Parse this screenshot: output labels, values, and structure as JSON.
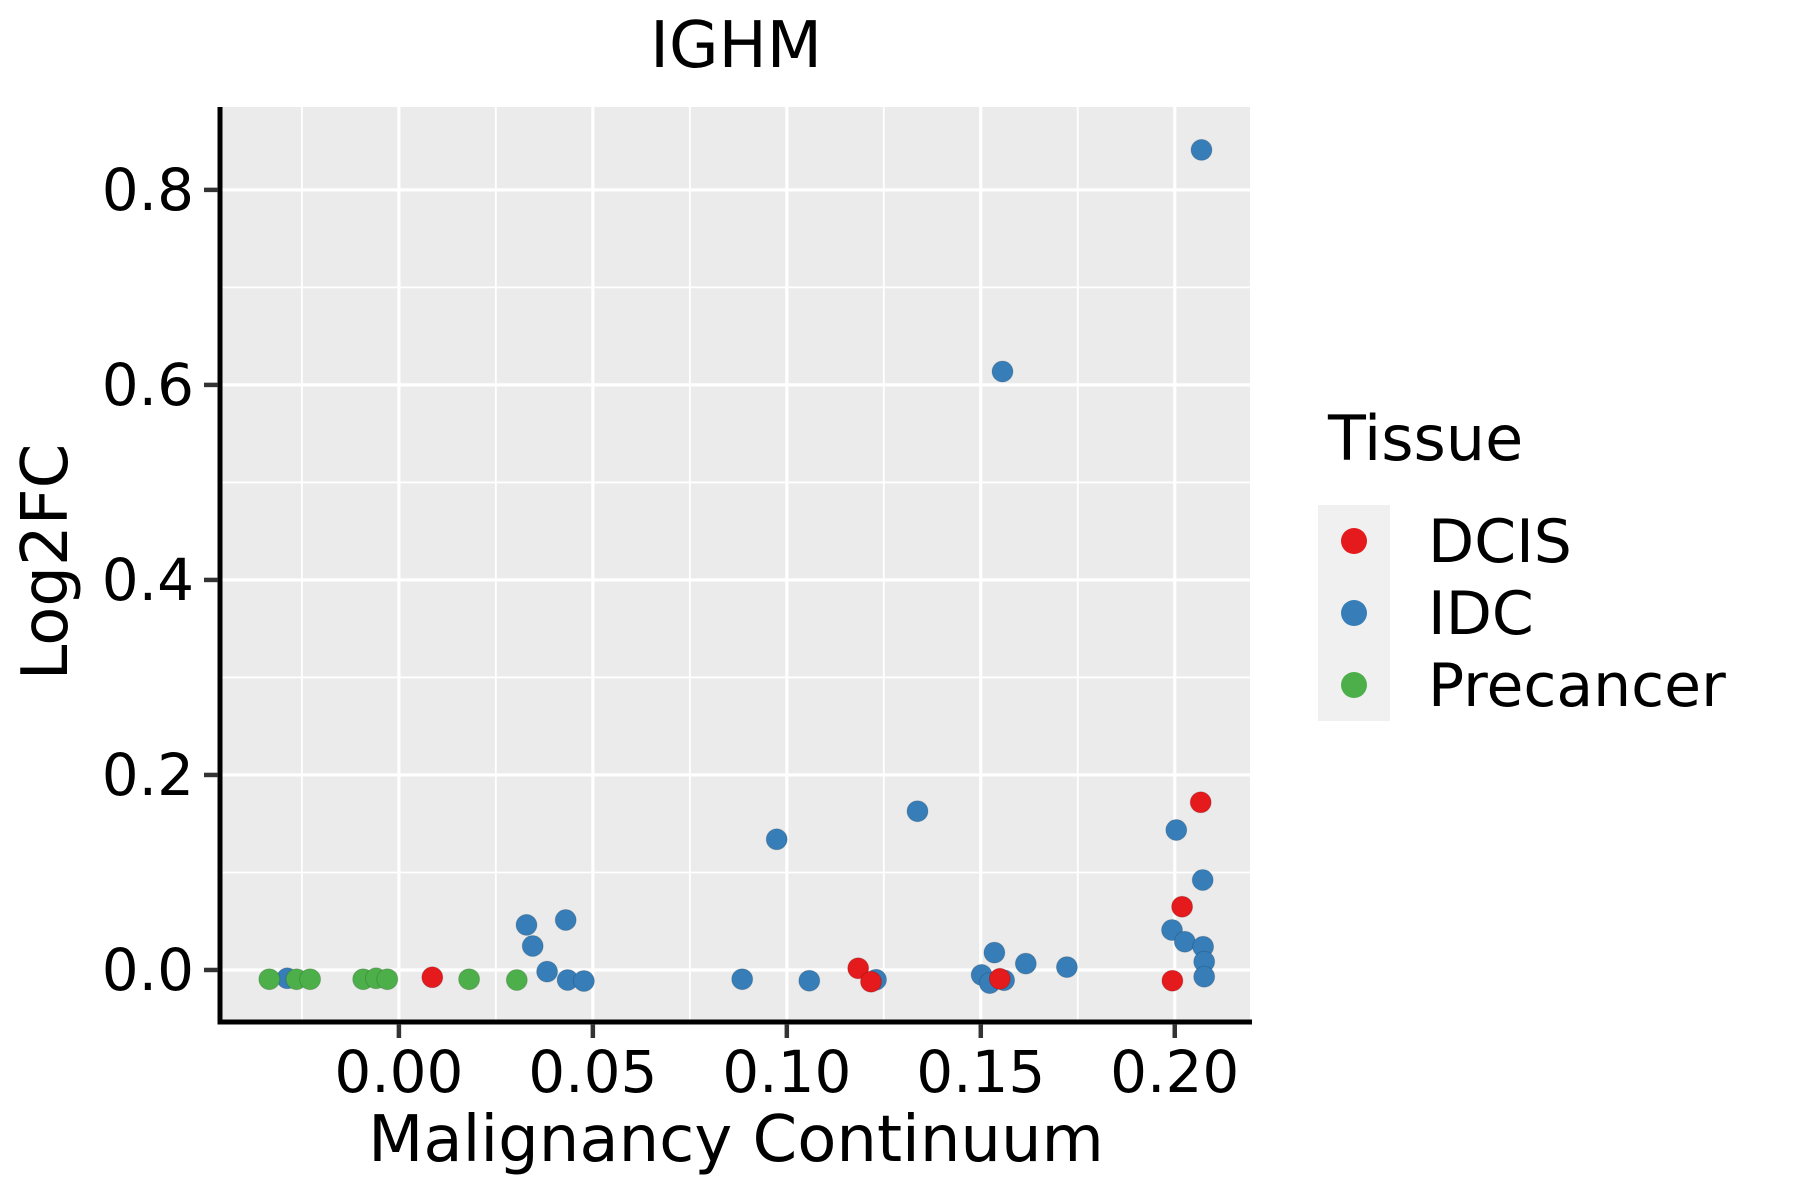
{
  "title": "IGHM",
  "axes": {
    "x": {
      "label": "Malignancy Continuum",
      "ticks": [
        0.0,
        0.05,
        0.1,
        0.15,
        0.2
      ],
      "tick_labels": [
        "0.00",
        "0.05",
        "0.10",
        "0.15",
        "0.20"
      ],
      "minor_ticks": [
        -0.025,
        0.025,
        0.075,
        0.125,
        0.175
      ],
      "range": [
        -0.0456,
        0.2194
      ]
    },
    "y": {
      "label": "Log2FC",
      "ticks": [
        0.0,
        0.2,
        0.4,
        0.6,
        0.8
      ],
      "tick_labels": [
        "0.0",
        "0.2",
        "0.4",
        "0.6",
        "0.8"
      ],
      "minor_ticks": [
        0.1,
        0.3,
        0.5,
        0.7
      ],
      "range": [
        -0.0513,
        0.885
      ]
    }
  },
  "legend": {
    "title": "Tissue",
    "items": [
      {
        "label": "DCIS",
        "color": "#E41A1C"
      },
      {
        "label": "IDC",
        "color": "#377EB8"
      },
      {
        "label": "Precancer",
        "color": "#4DAF4A"
      }
    ]
  },
  "style": {
    "panel_bg": "#EBEBEB",
    "grid_color": "#FFFFFF",
    "legend_key_bg": "#F0F0F0",
    "spine_color": "#000000",
    "tick_color": "#333333",
    "point_radius": 10.5
  },
  "chart_data": {
    "type": "scatter",
    "title": "IGHM",
    "xlabel": "Malignancy Continuum",
    "ylabel": "Log2FC",
    "xlim": [
      -0.0456,
      0.2194
    ],
    "ylim": [
      -0.0513,
      0.885
    ],
    "grid": "white major+minor gridlines on gray panel",
    "legend_position": "right",
    "series": [
      {
        "name": "IDC",
        "color": "#377EB8",
        "points": [
          [
            -0.0288,
            -0.0085
          ],
          [
            0.0329,
            0.0462
          ],
          [
            0.0345,
            0.0246
          ],
          [
            0.0382,
            -0.0017
          ],
          [
            0.043,
            0.0513
          ],
          [
            0.0435,
            -0.0103
          ],
          [
            0.0477,
            -0.0113
          ],
          [
            0.0885,
            -0.0095
          ],
          [
            0.0974,
            0.134
          ],
          [
            0.1058,
            -0.011
          ],
          [
            0.123,
            -0.01
          ],
          [
            0.1337,
            0.1628
          ],
          [
            0.1502,
            -0.005
          ],
          [
            0.1523,
            -0.0135
          ],
          [
            0.156,
            -0.0105
          ],
          [
            0.1535,
            0.0178
          ],
          [
            0.1616,
            0.0065
          ],
          [
            0.1556,
            0.6137
          ],
          [
            0.1722,
            0.003
          ],
          [
            0.2004,
            0.1436
          ],
          [
            0.2072,
            0.0923
          ],
          [
            0.1993,
            0.041
          ],
          [
            0.2026,
            0.029
          ],
          [
            0.2073,
            0.0239
          ],
          [
            0.2076,
            0.0085
          ],
          [
            0.2076,
            -0.0069
          ],
          [
            0.2069,
            0.841
          ]
        ]
      },
      {
        "name": "DCIS",
        "color": "#E41A1C",
        "points": [
          [
            0.0086,
            -0.0075
          ],
          [
            0.1184,
            0.0017
          ],
          [
            0.1217,
            -0.012
          ],
          [
            0.1549,
            -0.009
          ],
          [
            0.2067,
            0.172
          ],
          [
            0.2019,
            0.0649
          ],
          [
            0.1994,
            -0.011
          ]
        ]
      },
      {
        "name": "Precancer",
        "color": "#4DAF4A",
        "points": [
          [
            -0.0334,
            -0.0095
          ],
          [
            -0.0264,
            -0.0095
          ],
          [
            -0.0229,
            -0.0095
          ],
          [
            -0.0092,
            -0.0095
          ],
          [
            -0.0059,
            -0.0085
          ],
          [
            -0.003,
            -0.0095
          ],
          [
            0.0181,
            -0.0095
          ],
          [
            0.0304,
            -0.0103
          ]
        ]
      }
    ]
  }
}
